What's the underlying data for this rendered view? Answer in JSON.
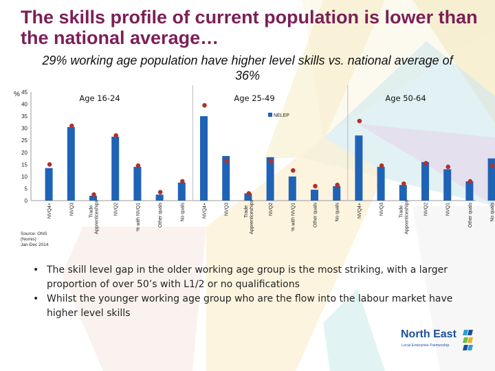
{
  "title": "The skills profile of current population is lower than the national average…",
  "subtitle": "29% working age population have higher level skills vs. national average of 36%",
  "bullets": [
    "The skill level gap in the older working age group is the most striking, with a larger proportion of over 50’s with L1/2 or no qualifications",
    "Whilst the younger working age group who are the flow into the labour market have higher level skills"
  ],
  "logo": {
    "name": "North East",
    "tagline": "Local Enterprise Partnership"
  },
  "colors": {
    "title": "#7b1f57",
    "bar": "#1f63b6",
    "marker": "#b3302e",
    "logo": "#1b4f9c"
  },
  "chart_data": {
    "type": "bar",
    "ylabel": "%",
    "ylim": [
      0,
      45
    ],
    "yticks": [
      0,
      5,
      10,
      15,
      20,
      25,
      30,
      35,
      40,
      45
    ],
    "source": "Source: ONS (Nomis) Jan-Dec 2014",
    "legend": "NELEP",
    "groups": [
      {
        "name": "Age 16-24",
        "categories": [
          "NVQ4+",
          "NVQ3",
          "Trade Apprenticeships",
          "NVQ2",
          "% with NVQ1",
          "Other quals",
          "No quals"
        ],
        "values": [
          13.5,
          30.5,
          2,
          26.5,
          14,
          2.5,
          7.5
        ],
        "markers": [
          15,
          31,
          2.5,
          27,
          14.5,
          3.5,
          8
        ]
      },
      {
        "name": "Age 25-49",
        "categories": [
          "NVQ4+",
          "NVQ3",
          "Trade Apprenticeships",
          "NVQ2",
          "% with NVQ1",
          "Other quals",
          "No quals"
        ],
        "values": [
          35,
          18.5,
          3,
          18,
          10,
          4.5,
          6
        ],
        "markers": [
          39.5,
          16.5,
          3,
          16.5,
          12.5,
          6,
          6.5
        ]
      },
      {
        "name": "Age 50-64",
        "categories": [
          "NVQ4+",
          "NVQ3",
          "Trade Apprenticeships",
          "NVQ2",
          "NVQ1",
          "Other quals",
          "No quals"
        ],
        "values": [
          27,
          14,
          6.5,
          16,
          13,
          8,
          17.5
        ],
        "markers": [
          33,
          14.5,
          7,
          15.5,
          14,
          8,
          14.5
        ]
      }
    ]
  }
}
